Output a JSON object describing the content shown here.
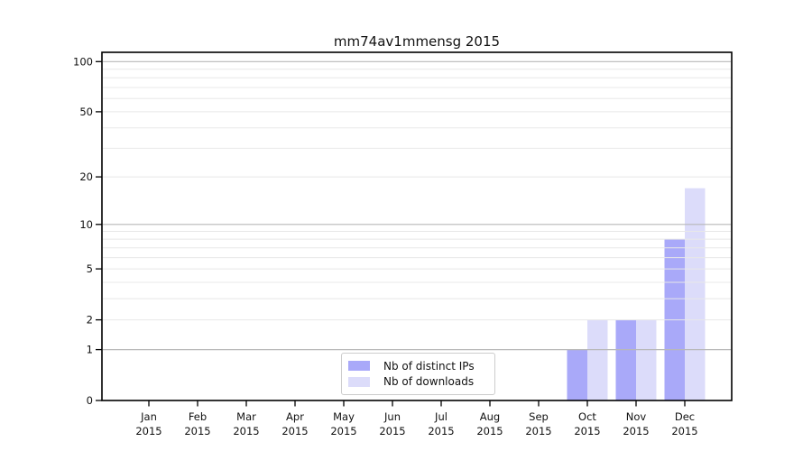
{
  "title": "mm74av1mmensg 2015",
  "chart_data": {
    "type": "bar",
    "title": "mm74av1mmensg 2015",
    "categories": [
      "Jan",
      "Feb",
      "Mar",
      "Apr",
      "May",
      "Jun",
      "Jul",
      "Aug",
      "Sep",
      "Oct",
      "Nov",
      "Dec"
    ],
    "x_tick_year_line": "2015",
    "series": [
      {
        "name": "Nb of distinct IPs",
        "color": "#a9a9f9",
        "values": [
          0,
          0,
          0,
          0,
          0,
          0,
          0,
          0,
          0,
          1,
          2,
          8
        ]
      },
      {
        "name": "Nb of downloads",
        "color": "#dcdcfa",
        "values": [
          0,
          0,
          0,
          0,
          0,
          0,
          0,
          0,
          0,
          2,
          2,
          17
        ]
      }
    ],
    "y_scale": "log10(1+value)",
    "y_ticks": [
      0,
      1,
      2,
      5,
      10,
      20,
      50,
      100
    ],
    "y_major_gridlines": [
      1,
      10,
      100
    ],
    "y_minor_gridlines": [
      2,
      3,
      4,
      5,
      6,
      7,
      8,
      9,
      20,
      30,
      40,
      50,
      60,
      70,
      80,
      90
    ],
    "ylim": [
      0,
      113.6
    ],
    "grid": true,
    "gridlines_above_bars": true,
    "legend_position": "inside-bottom-center",
    "colors": {
      "axis": "#000000",
      "major_grid": "#b8b8b8",
      "minor_grid": "#e8e8e8",
      "text": "#111111",
      "background": "#ffffff"
    }
  }
}
